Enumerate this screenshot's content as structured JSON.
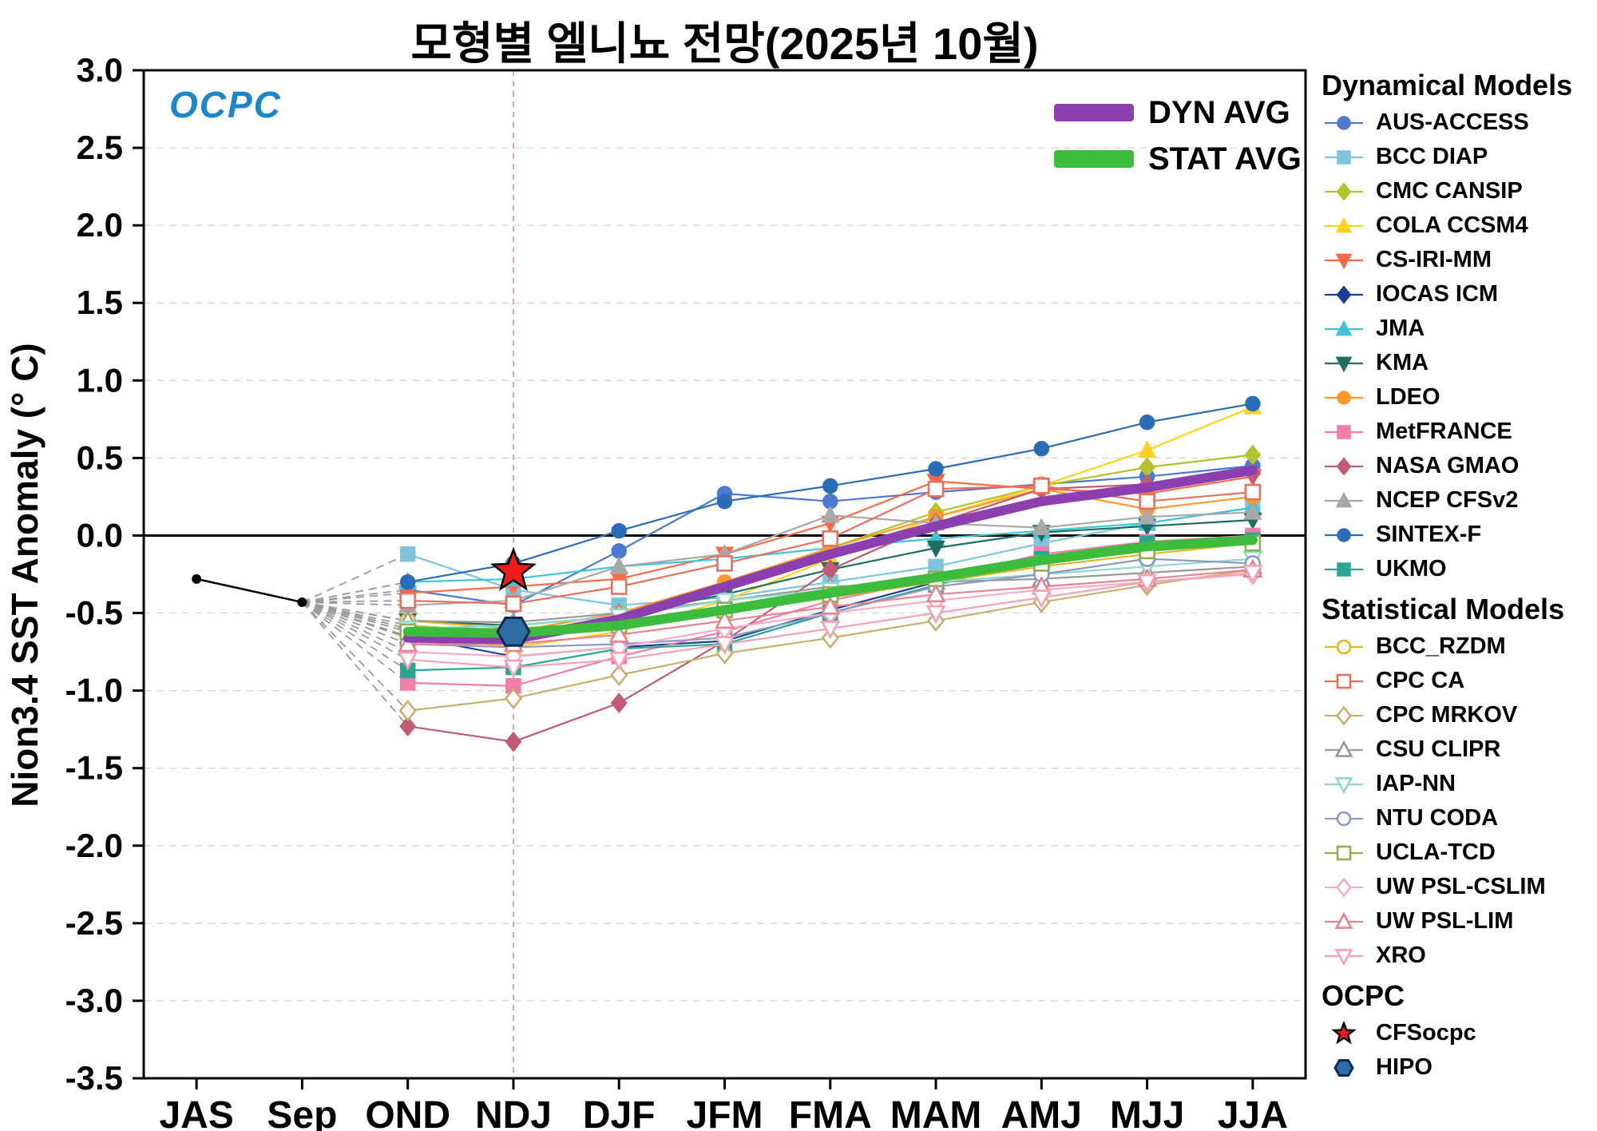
{
  "header": {
    "title": "모형별 엘니뇨 전망(2025년 10월)"
  },
  "branding": {
    "logo": "OCPC"
  },
  "inplot_legend": {
    "dyn": "DYN AVG",
    "stat": "STAT AVG",
    "dyn_color": "#8c3fae",
    "stat_color": "#3cbc3c"
  },
  "legend": {
    "dynamical_header": "Dynamical Models",
    "statistical_header": "Statistical Models",
    "ocpc_header": "OCPC"
  },
  "chart_data": {
    "type": "line",
    "title": "모형별 엘니뇨 전망(2025년 10월)",
    "xlabel": "",
    "ylabel": "Nion3.4 SST Anomaly (° C)",
    "ylim": [
      -3.5,
      3.0
    ],
    "ytick_step": 0.5,
    "grid": true,
    "legend_position": "right",
    "categories": [
      "JAS",
      "Sep",
      "OND",
      "NDJ",
      "DJF",
      "JFM",
      "FMA",
      "MAM",
      "AMJ",
      "MJJ",
      "JJA"
    ],
    "forecast_start_index": 2,
    "reference_line": {
      "category": "NDJ"
    },
    "observed": {
      "name": "Observed",
      "color": "#000000",
      "categories": [
        "JAS",
        "Sep"
      ],
      "values": [
        -0.28,
        -0.43
      ]
    },
    "dynamical_models": [
      {
        "name": "AUS-ACCESS",
        "color": "#4d79d0",
        "marker": "circle",
        "open": false,
        "values": [
          -0.35,
          -0.45,
          -0.1,
          0.27,
          0.22,
          0.28,
          0.33,
          0.38,
          0.45
        ]
      },
      {
        "name": "BCC DIAP",
        "color": "#7fc4dd",
        "marker": "square",
        "open": false,
        "values": [
          -0.12,
          -0.35,
          -0.45,
          -0.4,
          -0.3,
          -0.2,
          -0.05,
          0.08,
          0.18
        ]
      },
      {
        "name": "CMC CANSIP",
        "color": "#b3c32e",
        "marker": "diamond",
        "open": false,
        "values": [
          -0.58,
          -0.62,
          -0.55,
          -0.35,
          -0.08,
          0.15,
          0.32,
          0.44,
          0.52
        ]
      },
      {
        "name": "COLA CCSM4",
        "color": "#ffd21f",
        "marker": "triangle-up",
        "open": false,
        "values": [
          -0.65,
          -0.72,
          -0.62,
          -0.42,
          -0.15,
          0.12,
          0.32,
          0.55,
          0.83
        ]
      },
      {
        "name": "CS-IRI-MM",
        "color": "#ff6a45",
        "marker": "triangle-down",
        "open": false,
        "values": [
          -0.37,
          -0.33,
          -0.28,
          -0.12,
          0.08,
          0.35,
          0.3,
          0.27,
          0.38
        ]
      },
      {
        "name": "IOCAS ICM",
        "color": "#1c3f94",
        "marker": "diamond",
        "open": false,
        "values": [
          -0.65,
          -0.78,
          -0.72,
          -0.68,
          -0.48,
          -0.3,
          -0.15,
          -0.05,
          -0.02
        ]
      },
      {
        "name": "JMA",
        "color": "#3ec6d8",
        "marker": "triangle-up",
        "open": false,
        "values": [
          -0.3,
          -0.28,
          -0.2,
          -0.15,
          -0.08,
          -0.02,
          0.03,
          0.08,
          0.18
        ]
      },
      {
        "name": "KMA",
        "color": "#1e6f63",
        "marker": "triangle-down",
        "open": false,
        "values": [
          -0.55,
          -0.58,
          -0.52,
          -0.38,
          -0.22,
          -0.08,
          0.02,
          0.06,
          0.1
        ]
      },
      {
        "name": "LDEO",
        "color": "#ff9a2a",
        "marker": "circle",
        "open": false,
        "values": [
          -0.6,
          -0.62,
          -0.5,
          -0.3,
          -0.08,
          0.12,
          0.3,
          0.17,
          0.25
        ]
      },
      {
        "name": "MetFRANCE",
        "color": "#f47ca8",
        "marker": "square",
        "open": false,
        "values": [
          -0.95,
          -0.97,
          -0.78,
          -0.62,
          -0.42,
          -0.28,
          -0.12,
          -0.04,
          0.0
        ]
      },
      {
        "name": "NASA GMAO",
        "color": "#c25b72",
        "marker": "diamond",
        "open": false,
        "values": [
          -1.23,
          -1.33,
          -1.08,
          -0.68,
          -0.22,
          0.08,
          0.3,
          0.33,
          0.4
        ]
      },
      {
        "name": "NCEP CFSv2",
        "color": "#a8a8a8",
        "marker": "triangle-up",
        "open": false,
        "values": [
          -0.45,
          -0.42,
          -0.2,
          -0.12,
          0.13,
          0.08,
          0.05,
          0.12,
          0.15
        ]
      },
      {
        "name": "SINTEX-F",
        "color": "#2b6cb8",
        "marker": "circle",
        "open": false,
        "values": [
          -0.3,
          -0.18,
          0.03,
          0.22,
          0.32,
          0.43,
          0.56,
          0.73,
          0.85
        ]
      },
      {
        "name": "UKMO",
        "color": "#2aa793",
        "marker": "square",
        "open": false,
        "values": [
          -0.87,
          -0.85,
          -0.73,
          -0.7,
          -0.5,
          -0.32,
          -0.15,
          -0.05,
          -0.03
        ]
      }
    ],
    "statistical_models": [
      {
        "name": "BCC_RZDM",
        "color": "#e3b71e",
        "marker": "circle",
        "open": true,
        "values": [
          -0.55,
          -0.6,
          -0.56,
          -0.5,
          -0.4,
          -0.3,
          -0.2,
          -0.12,
          -0.05
        ]
      },
      {
        "name": "CPC CA",
        "color": "#e8705e",
        "marker": "square",
        "open": true,
        "values": [
          -0.42,
          -0.44,
          -0.33,
          -0.18,
          -0.02,
          0.3,
          0.32,
          0.22,
          0.28
        ]
      },
      {
        "name": "CPC MRKOV",
        "color": "#c9af6e",
        "marker": "diamond",
        "open": true,
        "values": [
          -1.13,
          -1.05,
          -0.9,
          -0.76,
          -0.66,
          -0.55,
          -0.43,
          -0.32,
          -0.22
        ]
      },
      {
        "name": "CSU CLIPR",
        "color": "#999999",
        "marker": "triangle-up",
        "open": true,
        "values": [
          -0.55,
          -0.56,
          -0.5,
          -0.42,
          -0.33,
          -0.3,
          -0.28,
          -0.24,
          -0.2
        ]
      },
      {
        "name": "IAP-NN",
        "color": "#8fd8cb",
        "marker": "triangle-down",
        "open": true,
        "values": [
          -0.6,
          -0.58,
          -0.52,
          -0.42,
          -0.35,
          -0.3,
          -0.25,
          -0.2,
          -0.15
        ]
      },
      {
        "name": "NTU CODA",
        "color": "#8d99c0",
        "marker": "circle",
        "open": true,
        "values": [
          -0.7,
          -0.72,
          -0.7,
          -0.66,
          -0.5,
          -0.33,
          -0.25,
          -0.15,
          -0.18
        ]
      },
      {
        "name": "UCLA-TCD",
        "color": "#8fae57",
        "marker": "square",
        "open": true,
        "values": [
          -0.62,
          -0.63,
          -0.58,
          -0.48,
          -0.38,
          -0.28,
          -0.18,
          -0.1,
          -0.05
        ]
      },
      {
        "name": "UW PSL-CSLIM",
        "color": "#f3aec6",
        "marker": "diamond",
        "open": true,
        "values": [
          -0.75,
          -0.78,
          -0.72,
          -0.6,
          -0.5,
          -0.42,
          -0.35,
          -0.3,
          -0.25
        ]
      },
      {
        "name": "UW PSL-LIM",
        "color": "#e8828e",
        "marker": "triangle-up",
        "open": true,
        "values": [
          -0.7,
          -0.7,
          -0.64,
          -0.55,
          -0.46,
          -0.38,
          -0.33,
          -0.28,
          -0.22
        ]
      },
      {
        "name": "XRO",
        "color": "#f4a2b4",
        "marker": "triangle-down",
        "open": true,
        "values": [
          -0.8,
          -0.85,
          -0.8,
          -0.7,
          -0.6,
          -0.5,
          -0.4,
          -0.3,
          -0.24
        ]
      }
    ],
    "averages": [
      {
        "name": "DYN AVG",
        "color": "#8c3fae",
        "values": [
          -0.66,
          -0.67,
          -0.54,
          -0.33,
          -0.12,
          0.06,
          0.22,
          0.31,
          0.42
        ]
      },
      {
        "name": "STAT AVG",
        "color": "#3cbc3c",
        "values": [
          -0.62,
          -0.63,
          -0.58,
          -0.48,
          -0.37,
          -0.27,
          -0.16,
          -0.07,
          -0.03
        ]
      }
    ],
    "ocpc": [
      {
        "name": "CFSocpc",
        "color": "#ee1c1c",
        "marker": "star",
        "category": "NDJ",
        "value": -0.23
      },
      {
        "name": "HIPO",
        "color": "#2e6da4",
        "marker": "hexagon",
        "category": "NDJ",
        "value": -0.62
      }
    ]
  }
}
